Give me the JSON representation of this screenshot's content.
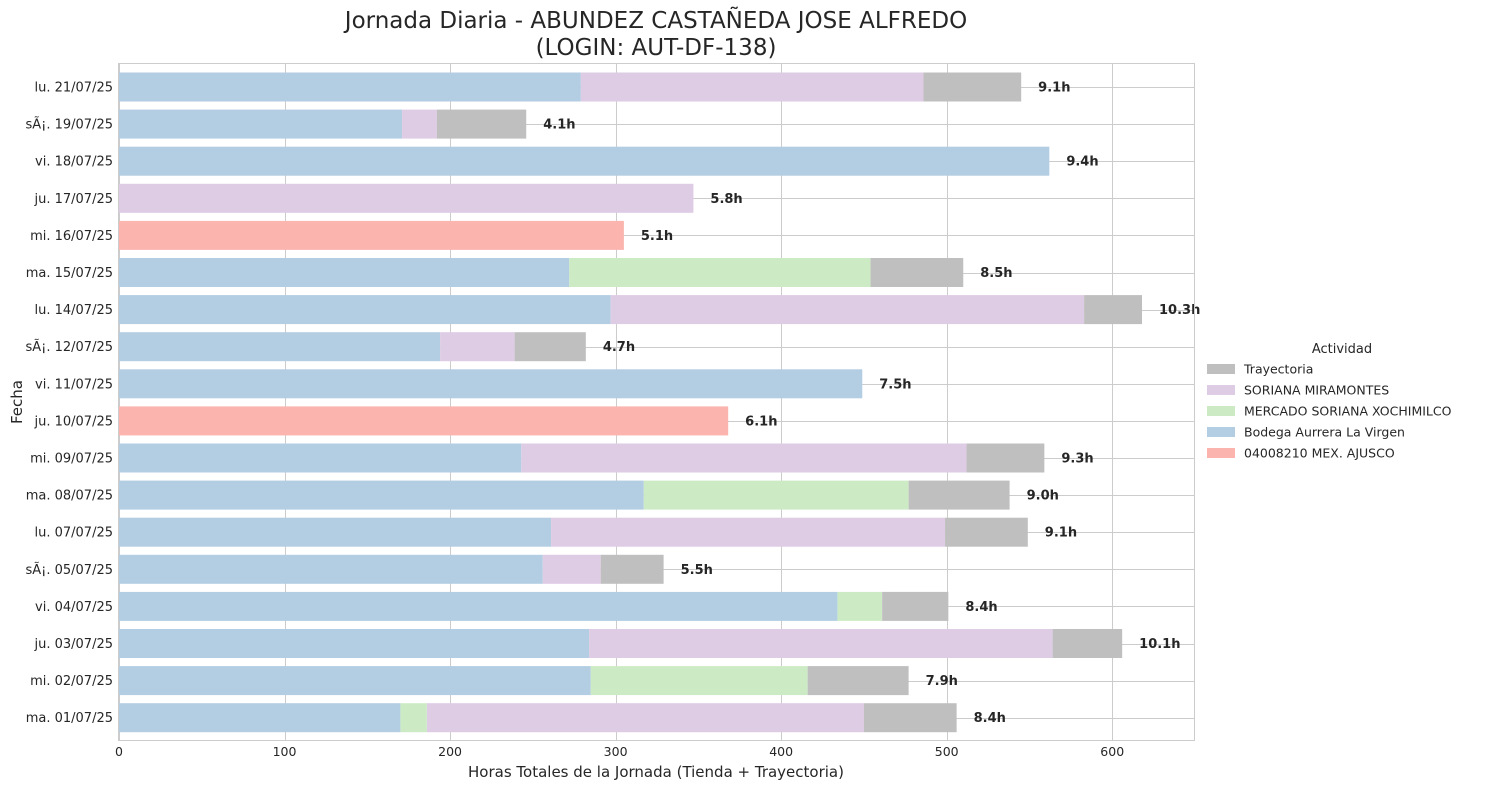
{
  "chart_data": {
    "type": "bar",
    "orientation": "horizontal",
    "stacked": true,
    "title_line1": "Jornada Diaria - ABUNDEZ CASTAÑEDA JOSE ALFREDO",
    "title_line2": "(LOGIN: AUT-DF-138)",
    "xlabel": "Horas Totales de la Jornada (Tienda + Trayectoria)",
    "ylabel": "Fecha",
    "xlim": [
      0,
      650
    ],
    "xticks": [
      0,
      100,
      200,
      300,
      400,
      500,
      600
    ],
    "grid": true,
    "legend_title": "Actividad",
    "legend_position": "right",
    "legend_order": [
      "Trayectoria",
      "SORIANA MIRAMONTES",
      "MERCADO SORIANA XOCHIMILCO",
      "Bodega Aurrera La Virgen",
      "04008210 MEX. AJUSCO"
    ],
    "colors": {
      "Trayectoria": "#bfbfbf",
      "SORIANA MIRAMONTES": "#decbe4",
      "MERCADO SORIANA XOCHIMILCO": "#ccebc5",
      "Bodega Aurrera La Virgen": "#b3cde3",
      "04008210 MEX. AJUSCO": "#fbb4ae"
    },
    "rows": [
      {
        "date": "lu. 21/07/25",
        "total_label": "9.1h",
        "segments": [
          {
            "series": "Bodega Aurrera La Virgen",
            "value": 279
          },
          {
            "series": "SORIANA MIRAMONTES",
            "value": 207
          },
          {
            "series": "Trayectoria",
            "value": 59
          }
        ]
      },
      {
        "date": "sÃ¡. 19/07/25",
        "total_label": "4.1h",
        "segments": [
          {
            "series": "Bodega Aurrera La Virgen",
            "value": 171
          },
          {
            "series": "SORIANA MIRAMONTES",
            "value": 21
          },
          {
            "series": "Trayectoria",
            "value": 54
          }
        ]
      },
      {
        "date": "vi. 18/07/25",
        "total_label": "9.4h",
        "segments": [
          {
            "series": "Bodega Aurrera La Virgen",
            "value": 562
          }
        ]
      },
      {
        "date": "ju. 17/07/25",
        "total_label": "5.8h",
        "segments": [
          {
            "series": "SORIANA MIRAMONTES",
            "value": 347
          }
        ]
      },
      {
        "date": "mi. 16/07/25",
        "total_label": "5.1h",
        "segments": [
          {
            "series": "04008210 MEX. AJUSCO",
            "value": 305
          }
        ]
      },
      {
        "date": "ma. 15/07/25",
        "total_label": "8.5h",
        "segments": [
          {
            "series": "Bodega Aurrera La Virgen",
            "value": 272
          },
          {
            "series": "MERCADO SORIANA XOCHIMILCO",
            "value": 182
          },
          {
            "series": "Trayectoria",
            "value": 56
          }
        ]
      },
      {
        "date": "lu. 14/07/25",
        "total_label": "10.3h",
        "segments": [
          {
            "series": "Bodega Aurrera La Virgen",
            "value": 297
          },
          {
            "series": "SORIANA MIRAMONTES",
            "value": 286
          },
          {
            "series": "Trayectoria",
            "value": 35
          }
        ]
      },
      {
        "date": "sÃ¡. 12/07/25",
        "total_label": "4.7h",
        "segments": [
          {
            "series": "Bodega Aurrera La Virgen",
            "value": 194
          },
          {
            "series": "SORIANA MIRAMONTES",
            "value": 45
          },
          {
            "series": "Trayectoria",
            "value": 43
          }
        ]
      },
      {
        "date": "vi. 11/07/25",
        "total_label": "7.5h",
        "segments": [
          {
            "series": "Bodega Aurrera La Virgen",
            "value": 449
          }
        ]
      },
      {
        "date": "ju. 10/07/25",
        "total_label": "6.1h",
        "segments": [
          {
            "series": "04008210 MEX. AJUSCO",
            "value": 368
          }
        ]
      },
      {
        "date": "mi. 09/07/25",
        "total_label": "9.3h",
        "segments": [
          {
            "series": "Bodega Aurrera La Virgen",
            "value": 243
          },
          {
            "series": "SORIANA MIRAMONTES",
            "value": 269
          },
          {
            "series": "Trayectoria",
            "value": 47
          }
        ]
      },
      {
        "date": "ma. 08/07/25",
        "total_label": "9.0h",
        "segments": [
          {
            "series": "Bodega Aurrera La Virgen",
            "value": 317
          },
          {
            "series": "MERCADO SORIANA XOCHIMILCO",
            "value": 160
          },
          {
            "series": "Trayectoria",
            "value": 61
          }
        ]
      },
      {
        "date": "lu. 07/07/25",
        "total_label": "9.1h",
        "segments": [
          {
            "series": "Bodega Aurrera La Virgen",
            "value": 261
          },
          {
            "series": "SORIANA MIRAMONTES",
            "value": 238
          },
          {
            "series": "Trayectoria",
            "value": 50
          }
        ]
      },
      {
        "date": "sÃ¡. 05/07/25",
        "total_label": "5.5h",
        "segments": [
          {
            "series": "Bodega Aurrera La Virgen",
            "value": 256
          },
          {
            "series": "SORIANA MIRAMONTES",
            "value": 35
          },
          {
            "series": "Trayectoria",
            "value": 38
          }
        ]
      },
      {
        "date": "vi. 04/07/25",
        "total_label": "8.4h",
        "segments": [
          {
            "series": "Bodega Aurrera La Virgen",
            "value": 434
          },
          {
            "series": "MERCADO SORIANA XOCHIMILCO",
            "value": 27
          },
          {
            "series": "Trayectoria",
            "value": 40
          }
        ]
      },
      {
        "date": "ju. 03/07/25",
        "total_label": "10.1h",
        "segments": [
          {
            "series": "Bodega Aurrera La Virgen",
            "value": 284
          },
          {
            "series": "SORIANA MIRAMONTES",
            "value": 280
          },
          {
            "series": "Trayectoria",
            "value": 42
          }
        ]
      },
      {
        "date": "mi. 02/07/25",
        "total_label": "7.9h",
        "segments": [
          {
            "series": "Bodega Aurrera La Virgen",
            "value": 285
          },
          {
            "series": "MERCADO SORIANA XOCHIMILCO",
            "value": 131
          },
          {
            "series": "Trayectoria",
            "value": 61
          }
        ]
      },
      {
        "date": "ma. 01/07/25",
        "total_label": "8.4h",
        "segments": [
          {
            "series": "Bodega Aurrera La Virgen",
            "value": 170
          },
          {
            "series": "MERCADO SORIANA XOCHIMILCO",
            "value": 16
          },
          {
            "series": "SORIANA MIRAMONTES",
            "value": 264
          },
          {
            "series": "Trayectoria",
            "value": 56
          }
        ]
      }
    ]
  }
}
